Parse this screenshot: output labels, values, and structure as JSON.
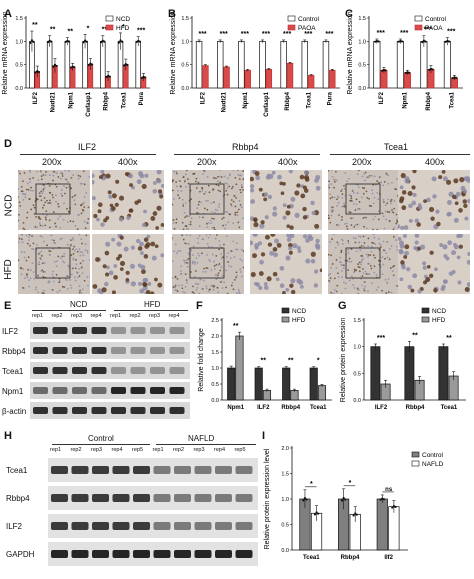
{
  "panel_letters": [
    "A",
    "B",
    "C",
    "D",
    "E",
    "F",
    "G",
    "H",
    "I"
  ],
  "chart_data": [
    {
      "panel": "A",
      "type": "bar",
      "ylabel": "Relative mRNA expression",
      "ylim": [
        0,
        1.5
      ],
      "yticks": [
        "0.0",
        "0.5",
        "1.0",
        "1.5"
      ],
      "categories": [
        "ILF2",
        "Nudt21",
        "Npm1",
        "Cwfasp1",
        "Rbbp4",
        "Tcea1",
        "Pura"
      ],
      "significance": [
        "**",
        "**",
        "**",
        "*",
        "***",
        "*",
        "***"
      ],
      "legend": [
        "NCD",
        "HFD"
      ],
      "series": [
        {
          "name": "NCD",
          "values": [
            1.0,
            1.0,
            1.0,
            1.0,
            1.0,
            1.0,
            1.0
          ],
          "errors": [
            0.22,
            0.12,
            0.08,
            0.15,
            0.12,
            0.18,
            0.1
          ],
          "color": "#ffffff"
        },
        {
          "name": "HFD",
          "values": [
            0.35,
            0.48,
            0.45,
            0.51,
            0.25,
            0.5,
            0.23
          ],
          "errors": [
            0.12,
            0.15,
            0.08,
            0.12,
            0.1,
            0.12,
            0.08
          ],
          "color": "#d94b4b"
        }
      ]
    },
    {
      "panel": "B",
      "type": "bar",
      "ylabel": "Relative mRNA expression",
      "ylim": [
        0,
        1.5
      ],
      "yticks": [
        "0.0",
        "0.5",
        "1.0",
        "1.5"
      ],
      "categories": [
        "ILF2",
        "Nudt21",
        "Npm1",
        "Cwfasp1",
        "Rbbp4",
        "Tcea1",
        "Pura"
      ],
      "significance": [
        "***",
        "***",
        "***",
        "***",
        "***",
        "***",
        "***"
      ],
      "legend": [
        "Control",
        "PAOA"
      ],
      "series": [
        {
          "name": "Control",
          "values": [
            1.0,
            1.0,
            1.0,
            1.0,
            1.0,
            1.0,
            1.0
          ],
          "errors": [
            0.03,
            0.03,
            0.03,
            0.03,
            0.03,
            0.03,
            0.03
          ],
          "color": "#ffffff"
        },
        {
          "name": "PAOA",
          "values": [
            0.48,
            0.45,
            0.38,
            0.4,
            0.53,
            0.27,
            0.38
          ],
          "errors": [
            0.02,
            0.02,
            0.02,
            0.02,
            0.02,
            0.02,
            0.02
          ],
          "color": "#d94b4b"
        }
      ]
    },
    {
      "panel": "C",
      "type": "bar",
      "ylabel": "Relative mRNA expression",
      "ylim": [
        0,
        1.5
      ],
      "yticks": [
        "0.0",
        "0.5",
        "1.0",
        "1.5"
      ],
      "categories": [
        "ILF2",
        "Npm1",
        "Rbbp4",
        "Tcea1"
      ],
      "significance": [
        "***",
        "***",
        "***",
        "***"
      ],
      "legend": [
        "Control",
        "PAOA"
      ],
      "series": [
        {
          "name": "Control",
          "values": [
            1.0,
            1.0,
            1.0,
            1.0
          ],
          "errors": [
            0.05,
            0.05,
            0.12,
            0.08
          ],
          "color": "#ffffff"
        },
        {
          "name": "PAOA",
          "values": [
            0.38,
            0.33,
            0.4,
            0.22
          ],
          "errors": [
            0.06,
            0.05,
            0.08,
            0.05
          ],
          "color": "#d94b4b"
        }
      ]
    },
    {
      "panel": "F",
      "type": "bar",
      "ylabel": "Relative fold change",
      "ylim": [
        0,
        2.5
      ],
      "yticks": [
        "0.0",
        "0.5",
        "1.0",
        "1.5",
        "2.0",
        "2.5"
      ],
      "categories": [
        "Npm1",
        "ILF2",
        "Rbbp4",
        "Tcea1"
      ],
      "significance": [
        "**",
        "**",
        "**",
        "*"
      ],
      "legend": [
        "NCD",
        "HFD"
      ],
      "series": [
        {
          "name": "NCD",
          "values": [
            1.0,
            1.0,
            1.0,
            1.0
          ],
          "errors": [
            0.06,
            0.04,
            0.04,
            0.04
          ],
          "color": "#333333"
        },
        {
          "name": "HFD",
          "values": [
            2.0,
            0.3,
            0.3,
            0.45
          ],
          "errors": [
            0.12,
            0.04,
            0.04,
            0.04
          ],
          "color": "#9a9a9a"
        }
      ]
    },
    {
      "panel": "G",
      "type": "bar",
      "ylabel": "Relative protein expression",
      "ylim": [
        0,
        1.5
      ],
      "yticks": [
        "0.0",
        "0.5",
        "1.0",
        "1.5"
      ],
      "categories": [
        "ILF2",
        "Rbbp4",
        "Tcea1"
      ],
      "significance": [
        "***",
        "**",
        "**"
      ],
      "legend": [
        "NCD",
        "HFD"
      ],
      "series": [
        {
          "name": "NCD",
          "values": [
            1.0,
            1.0,
            1.0
          ],
          "errors": [
            0.05,
            0.1,
            0.05
          ],
          "color": "#333333"
        },
        {
          "name": "HFD",
          "values": [
            0.3,
            0.37,
            0.45
          ],
          "errors": [
            0.07,
            0.07,
            0.08
          ],
          "color": "#9a9a9a"
        }
      ]
    },
    {
      "panel": "I",
      "type": "bar",
      "ylabel": "Relative protein expression level",
      "ylim": [
        0,
        2.0
      ],
      "yticks": [
        "0.0",
        "0.5",
        "1.0",
        "1.5",
        "2.0"
      ],
      "categories": [
        "Tcea1",
        "Rbbp4",
        "Ilf2"
      ],
      "significance": [
        "*",
        "*",
        "ns"
      ],
      "legend": [
        "Control",
        "NAFLD"
      ],
      "series": [
        {
          "name": "Control",
          "values": [
            1.0,
            1.0,
            1.0
          ],
          "errors": [
            0.18,
            0.2,
            0.08
          ],
          "color": "#7f7f7f"
        },
        {
          "name": "NAFLD",
          "values": [
            0.72,
            0.7,
            0.85
          ],
          "errors": [
            0.15,
            0.15,
            0.12
          ],
          "color": "#ffffff"
        }
      ]
    }
  ],
  "panel_D": {
    "proteins": [
      "ILF2",
      "Rbbp4",
      "Tcea1"
    ],
    "magnifications": [
      "200x",
      "400x"
    ],
    "rows": [
      "NCD",
      "HFD"
    ]
  },
  "panel_E": {
    "groups": [
      "NCD",
      "HFD"
    ],
    "lanes": [
      "rep1",
      "rep2",
      "rep3",
      "rep4",
      "rep1",
      "rep2",
      "rep3",
      "rep4"
    ],
    "proteins": [
      "ILF2",
      "Rbbp4",
      "Tcea1",
      "Npm1",
      "β-actin"
    ]
  },
  "panel_H": {
    "groups": [
      "Control",
      "NAFLD"
    ],
    "lanes": [
      "rep1",
      "rep2",
      "rep3",
      "rep4",
      "rep5",
      "rep1",
      "rep2",
      "rep3",
      "rep4",
      "rep5"
    ],
    "proteins": [
      "Tcea1",
      "Rbbp4",
      "ILF2",
      "GAPDH"
    ]
  }
}
